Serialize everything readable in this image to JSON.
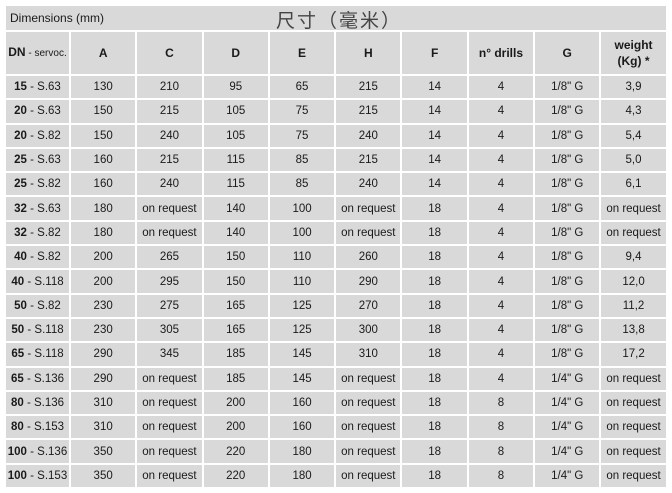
{
  "title": "Dimensions (mm)",
  "title_cn": "尺寸（毫米）",
  "headers": {
    "dn_bold": "DN",
    "dn_rest": " - servoc.",
    "cols": [
      "A",
      "C",
      "D",
      "E",
      "H",
      "F",
      "n° drills",
      "G"
    ],
    "weight_1": "weight",
    "weight_2": "(Kg) *"
  },
  "rows": [
    {
      "dn": "15",
      "s": " - S.63",
      "v": [
        "130",
        "210",
        "95",
        "65",
        "215",
        "14",
        "4",
        "1/8\" G",
        "3,9"
      ]
    },
    {
      "dn": "20",
      "s": " - S.63",
      "v": [
        "150",
        "215",
        "105",
        "75",
        "215",
        "14",
        "4",
        "1/8\" G",
        "4,3"
      ]
    },
    {
      "dn": "20",
      "s": " - S.82",
      "v": [
        "150",
        "240",
        "105",
        "75",
        "240",
        "14",
        "4",
        "1/8\" G",
        "5,4"
      ]
    },
    {
      "dn": "25",
      "s": " - S.63",
      "v": [
        "160",
        "215",
        "115",
        "85",
        "215",
        "14",
        "4",
        "1/8\" G",
        "5,0"
      ]
    },
    {
      "dn": "25",
      "s": " - S.82",
      "v": [
        "160",
        "240",
        "115",
        "85",
        "240",
        "14",
        "4",
        "1/8\" G",
        "6,1"
      ]
    },
    {
      "dn": "32",
      "s": " - S.63",
      "v": [
        "180",
        "on request",
        "140",
        "100",
        "on request",
        "18",
        "4",
        "1/8\" G",
        "on request"
      ]
    },
    {
      "dn": "32",
      "s": " - S.82",
      "v": [
        "180",
        "on request",
        "140",
        "100",
        "on request",
        "18",
        "4",
        "1/8\" G",
        "on request"
      ]
    },
    {
      "dn": "40",
      "s": " - S.82",
      "v": [
        "200",
        "265",
        "150",
        "110",
        "260",
        "18",
        "4",
        "1/8\" G",
        "9,4"
      ]
    },
    {
      "dn": "40",
      "s": " - S.118",
      "v": [
        "200",
        "295",
        "150",
        "110",
        "290",
        "18",
        "4",
        "1/8\" G",
        "12,0"
      ]
    },
    {
      "dn": "50",
      "s": " - S.82",
      "v": [
        "230",
        "275",
        "165",
        "125",
        "270",
        "18",
        "4",
        "1/8\" G",
        "11,2"
      ]
    },
    {
      "dn": "50",
      "s": " - S.118",
      "v": [
        "230",
        "305",
        "165",
        "125",
        "300",
        "18",
        "4",
        "1/8\" G",
        "13,8"
      ]
    },
    {
      "dn": "65",
      "s": " - S.118",
      "v": [
        "290",
        "345",
        "185",
        "145",
        "310",
        "18",
        "4",
        "1/8\" G",
        "17,2"
      ]
    },
    {
      "dn": "65",
      "s": " - S.136",
      "v": [
        "290",
        "on request",
        "185",
        "145",
        "on request",
        "18",
        "4",
        "1/4\" G",
        "on request"
      ]
    },
    {
      "dn": "80",
      "s": " - S.136",
      "v": [
        "310",
        "on request",
        "200",
        "160",
        "on request",
        "18",
        "8",
        "1/4\" G",
        "on request"
      ]
    },
    {
      "dn": "80",
      "s": " - S.153",
      "v": [
        "310",
        "on request",
        "200",
        "160",
        "on request",
        "18",
        "8",
        "1/4\" G",
        "on request"
      ]
    },
    {
      "dn": "100",
      "s": " - S.136",
      "v": [
        "350",
        "on request",
        "220",
        "180",
        "on request",
        "18",
        "8",
        "1/4\" G",
        "on request"
      ]
    },
    {
      "dn": "100",
      "s": " - S.153",
      "v": [
        "350",
        "on request",
        "220",
        "180",
        "on request",
        "18",
        "8",
        "1/4\" G",
        "on request"
      ]
    }
  ]
}
